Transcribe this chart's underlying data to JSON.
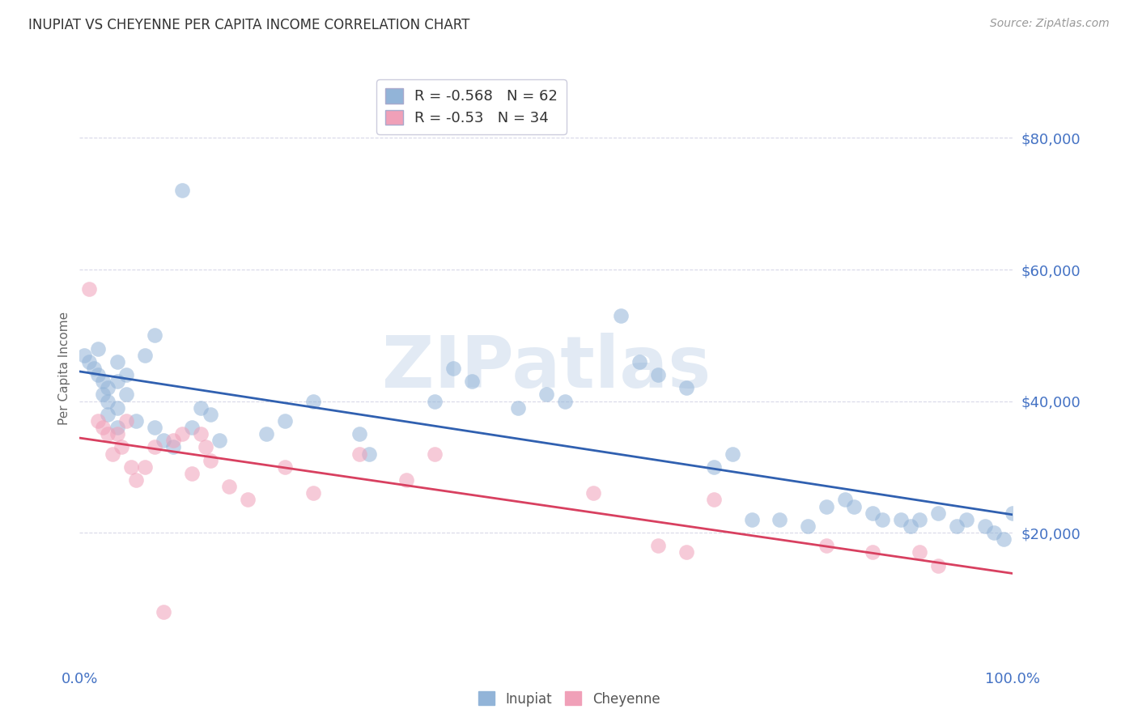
{
  "title": "INUPIAT VS CHEYENNE PER CAPITA INCOME CORRELATION CHART",
  "source": "Source: ZipAtlas.com",
  "ylabel": "Per Capita Income",
  "ylim": [
    0,
    90000
  ],
  "xlim": [
    0,
    1.0
  ],
  "yticks": [
    0,
    20000,
    40000,
    60000,
    80000
  ],
  "background_color": "#ffffff",
  "grid_color": "#d8d8e8",
  "inupiat_color": "#92b4d8",
  "cheyenne_color": "#f0a0b8",
  "inupiat_line_color": "#3060b0",
  "cheyenne_line_color": "#d84060",
  "inupiat_R": -0.568,
  "inupiat_N": 62,
  "cheyenne_R": -0.53,
  "cheyenne_N": 34,
  "watermark": "ZIPatlas",
  "inupiat_x": [
    0.005,
    0.01,
    0.015,
    0.02,
    0.02,
    0.025,
    0.025,
    0.03,
    0.03,
    0.03,
    0.04,
    0.04,
    0.04,
    0.04,
    0.05,
    0.05,
    0.06,
    0.07,
    0.08,
    0.08,
    0.09,
    0.1,
    0.11,
    0.12,
    0.13,
    0.14,
    0.15,
    0.2,
    0.22,
    0.25,
    0.3,
    0.31,
    0.38,
    0.4,
    0.42,
    0.47,
    0.5,
    0.52,
    0.58,
    0.6,
    0.62,
    0.65,
    0.68,
    0.7,
    0.72,
    0.75,
    0.78,
    0.8,
    0.82,
    0.83,
    0.85,
    0.86,
    0.88,
    0.89,
    0.9,
    0.92,
    0.94,
    0.95,
    0.97,
    0.98,
    0.99,
    1.0
  ],
  "inupiat_y": [
    47000,
    46000,
    45000,
    48000,
    44000,
    43000,
    41000,
    42000,
    40000,
    38000,
    46000,
    43000,
    39000,
    36000,
    44000,
    41000,
    37000,
    47000,
    50000,
    36000,
    34000,
    33000,
    72000,
    36000,
    39000,
    38000,
    34000,
    35000,
    37000,
    40000,
    35000,
    32000,
    40000,
    45000,
    43000,
    39000,
    41000,
    40000,
    53000,
    46000,
    44000,
    42000,
    30000,
    32000,
    22000,
    22000,
    21000,
    24000,
    25000,
    24000,
    23000,
    22000,
    22000,
    21000,
    22000,
    23000,
    21000,
    22000,
    21000,
    20000,
    19000,
    23000
  ],
  "cheyenne_x": [
    0.01,
    0.02,
    0.025,
    0.03,
    0.035,
    0.04,
    0.045,
    0.05,
    0.055,
    0.06,
    0.07,
    0.08,
    0.09,
    0.1,
    0.11,
    0.12,
    0.13,
    0.135,
    0.14,
    0.16,
    0.18,
    0.22,
    0.25,
    0.3,
    0.35,
    0.38,
    0.55,
    0.62,
    0.65,
    0.68,
    0.8,
    0.85,
    0.9,
    0.92
  ],
  "cheyenne_y": [
    57000,
    37000,
    36000,
    35000,
    32000,
    35000,
    33000,
    37000,
    30000,
    28000,
    30000,
    33000,
    8000,
    34000,
    35000,
    29000,
    35000,
    33000,
    31000,
    27000,
    25000,
    30000,
    26000,
    32000,
    28000,
    32000,
    26000,
    18000,
    17000,
    25000,
    18000,
    17000,
    17000,
    15000
  ]
}
